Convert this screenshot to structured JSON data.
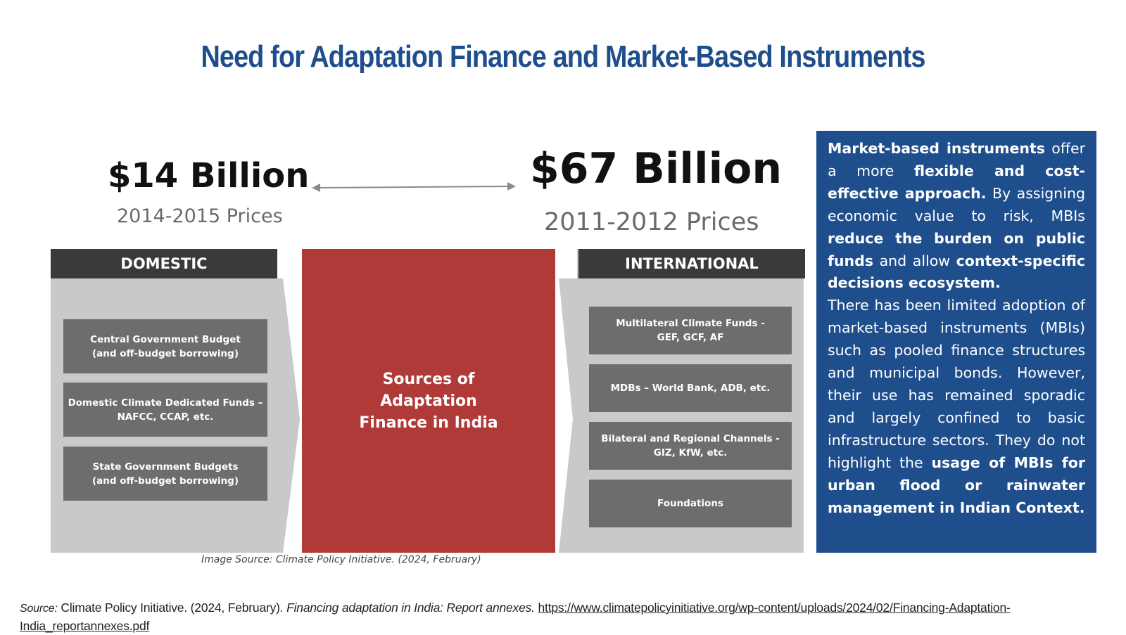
{
  "title": "Need for Adaptation Finance and Market-Based Instruments",
  "left_estimate": {
    "amount": "$14 Billion",
    "prices": "2014-2015 Prices"
  },
  "right_estimate": {
    "amount": "$67 Billion",
    "prices": "2011-2012 Prices"
  },
  "domestic": {
    "header": "DOMESTIC",
    "items": [
      "Central Government Budget\n(and off-budget borrowing)",
      "Domestic Climate Dedicated Funds –\nNAFCC, CCAP, etc.",
      "State Government Budgets\n(and off-budget borrowing)"
    ]
  },
  "center_label": "Sources of\nAdaptation\nFinance in India",
  "international": {
    "header": "INTERNATIONAL",
    "items": [
      "Multilateral Climate Funds -\nGEF, GCF, AF",
      "MDBs – World Bank, ADB, etc.",
      "Bilateral and Regional Channels -\nGIZ, KfW, etc.",
      "Foundations"
    ]
  },
  "image_source": "Image Source: Climate Policy Initiative. (2024, February)",
  "callout": {
    "p1": {
      "b1": "Market-based instruments",
      "t1": " offer a more ",
      "b2": "flexible and cost-effective approach.",
      "t2": " By assigning economic value to risk, MBIs ",
      "b3": "reduce the burden on public funds",
      "t3": " and allow ",
      "b4": "context-specific decisions ecosystem."
    },
    "p2": {
      "t1": "There has been limited adoption of market-based instruments (MBIs) such as pooled finance structures and municipal bonds. However, their use has remained sporadic and largely confined to basic infrastructure sectors. They do not highlight the ",
      "b1": "usage of MBIs for urban flood or rainwater management in Indian Context."
    }
  },
  "footer": {
    "label": "Source:",
    "org": " Climate Policy Initiative. (2024, February). ",
    "report": "Financing adaptation in India: Report annexes.",
    "url": "https://www.climatepolicyinitiative.org/wp-content/uploads/2024/02/Financing-Adaptation-India_reportannexes.pdf"
  },
  "colors": {
    "title": "#1f4e8c",
    "callout_bg": "#1f4e8c",
    "center_bg": "#b03a37",
    "header_bg": "#3a3a3a",
    "box_bg": "#6d6d6d",
    "panel_bg": "#c9c9c9"
  }
}
